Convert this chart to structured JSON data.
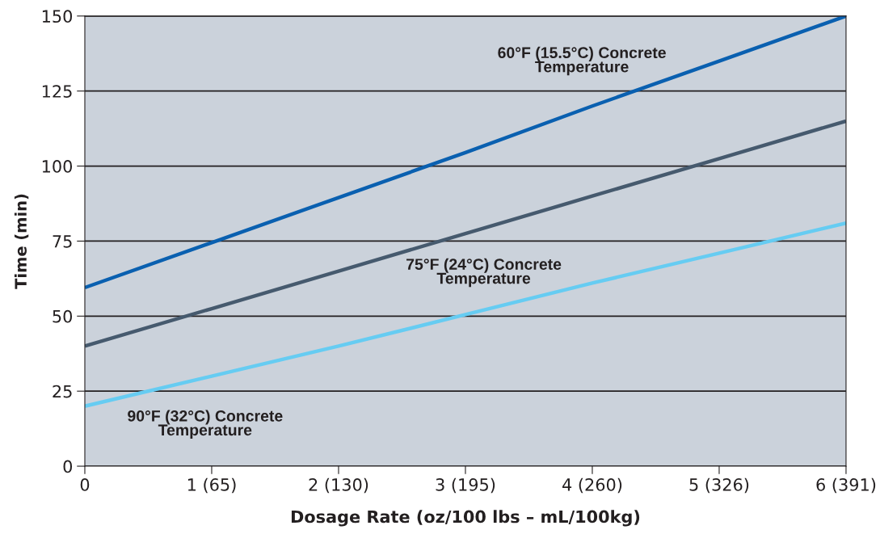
{
  "chart_data": {
    "type": "line",
    "xlabel": "Dosage Rate (oz/100 lbs – mL/100kg)",
    "ylabel": "Time (min)",
    "categories": [
      "0",
      "1 (65)",
      "2 (130)",
      "3 (195)",
      "4 (260)",
      "5 (326)",
      "6 (391)"
    ],
    "series": [
      {
        "name": "60°F (15.5°C) Concrete\nTemperature",
        "color": "#0a60b0",
        "values": [
          59.5,
          74.5,
          89.5,
          104.5,
          120,
          135,
          150
        ]
      },
      {
        "name": "75°F (24°C) Concrete\nTemperature",
        "color": "#465a6e",
        "values": [
          40,
          52.5,
          65,
          77.5,
          90,
          102.5,
          115
        ]
      },
      {
        "name": "90°F (32°C) Concrete\nTemperature",
        "color": "#66ccf2",
        "values": [
          20,
          30,
          40,
          50.5,
          61,
          71,
          81
        ]
      }
    ],
    "ylim": [
      0,
      150
    ],
    "yticks": [
      0,
      25,
      50,
      75,
      100,
      125,
      150
    ],
    "grid": "y",
    "legend": false,
    "marker": "none",
    "line_style": "solid"
  }
}
